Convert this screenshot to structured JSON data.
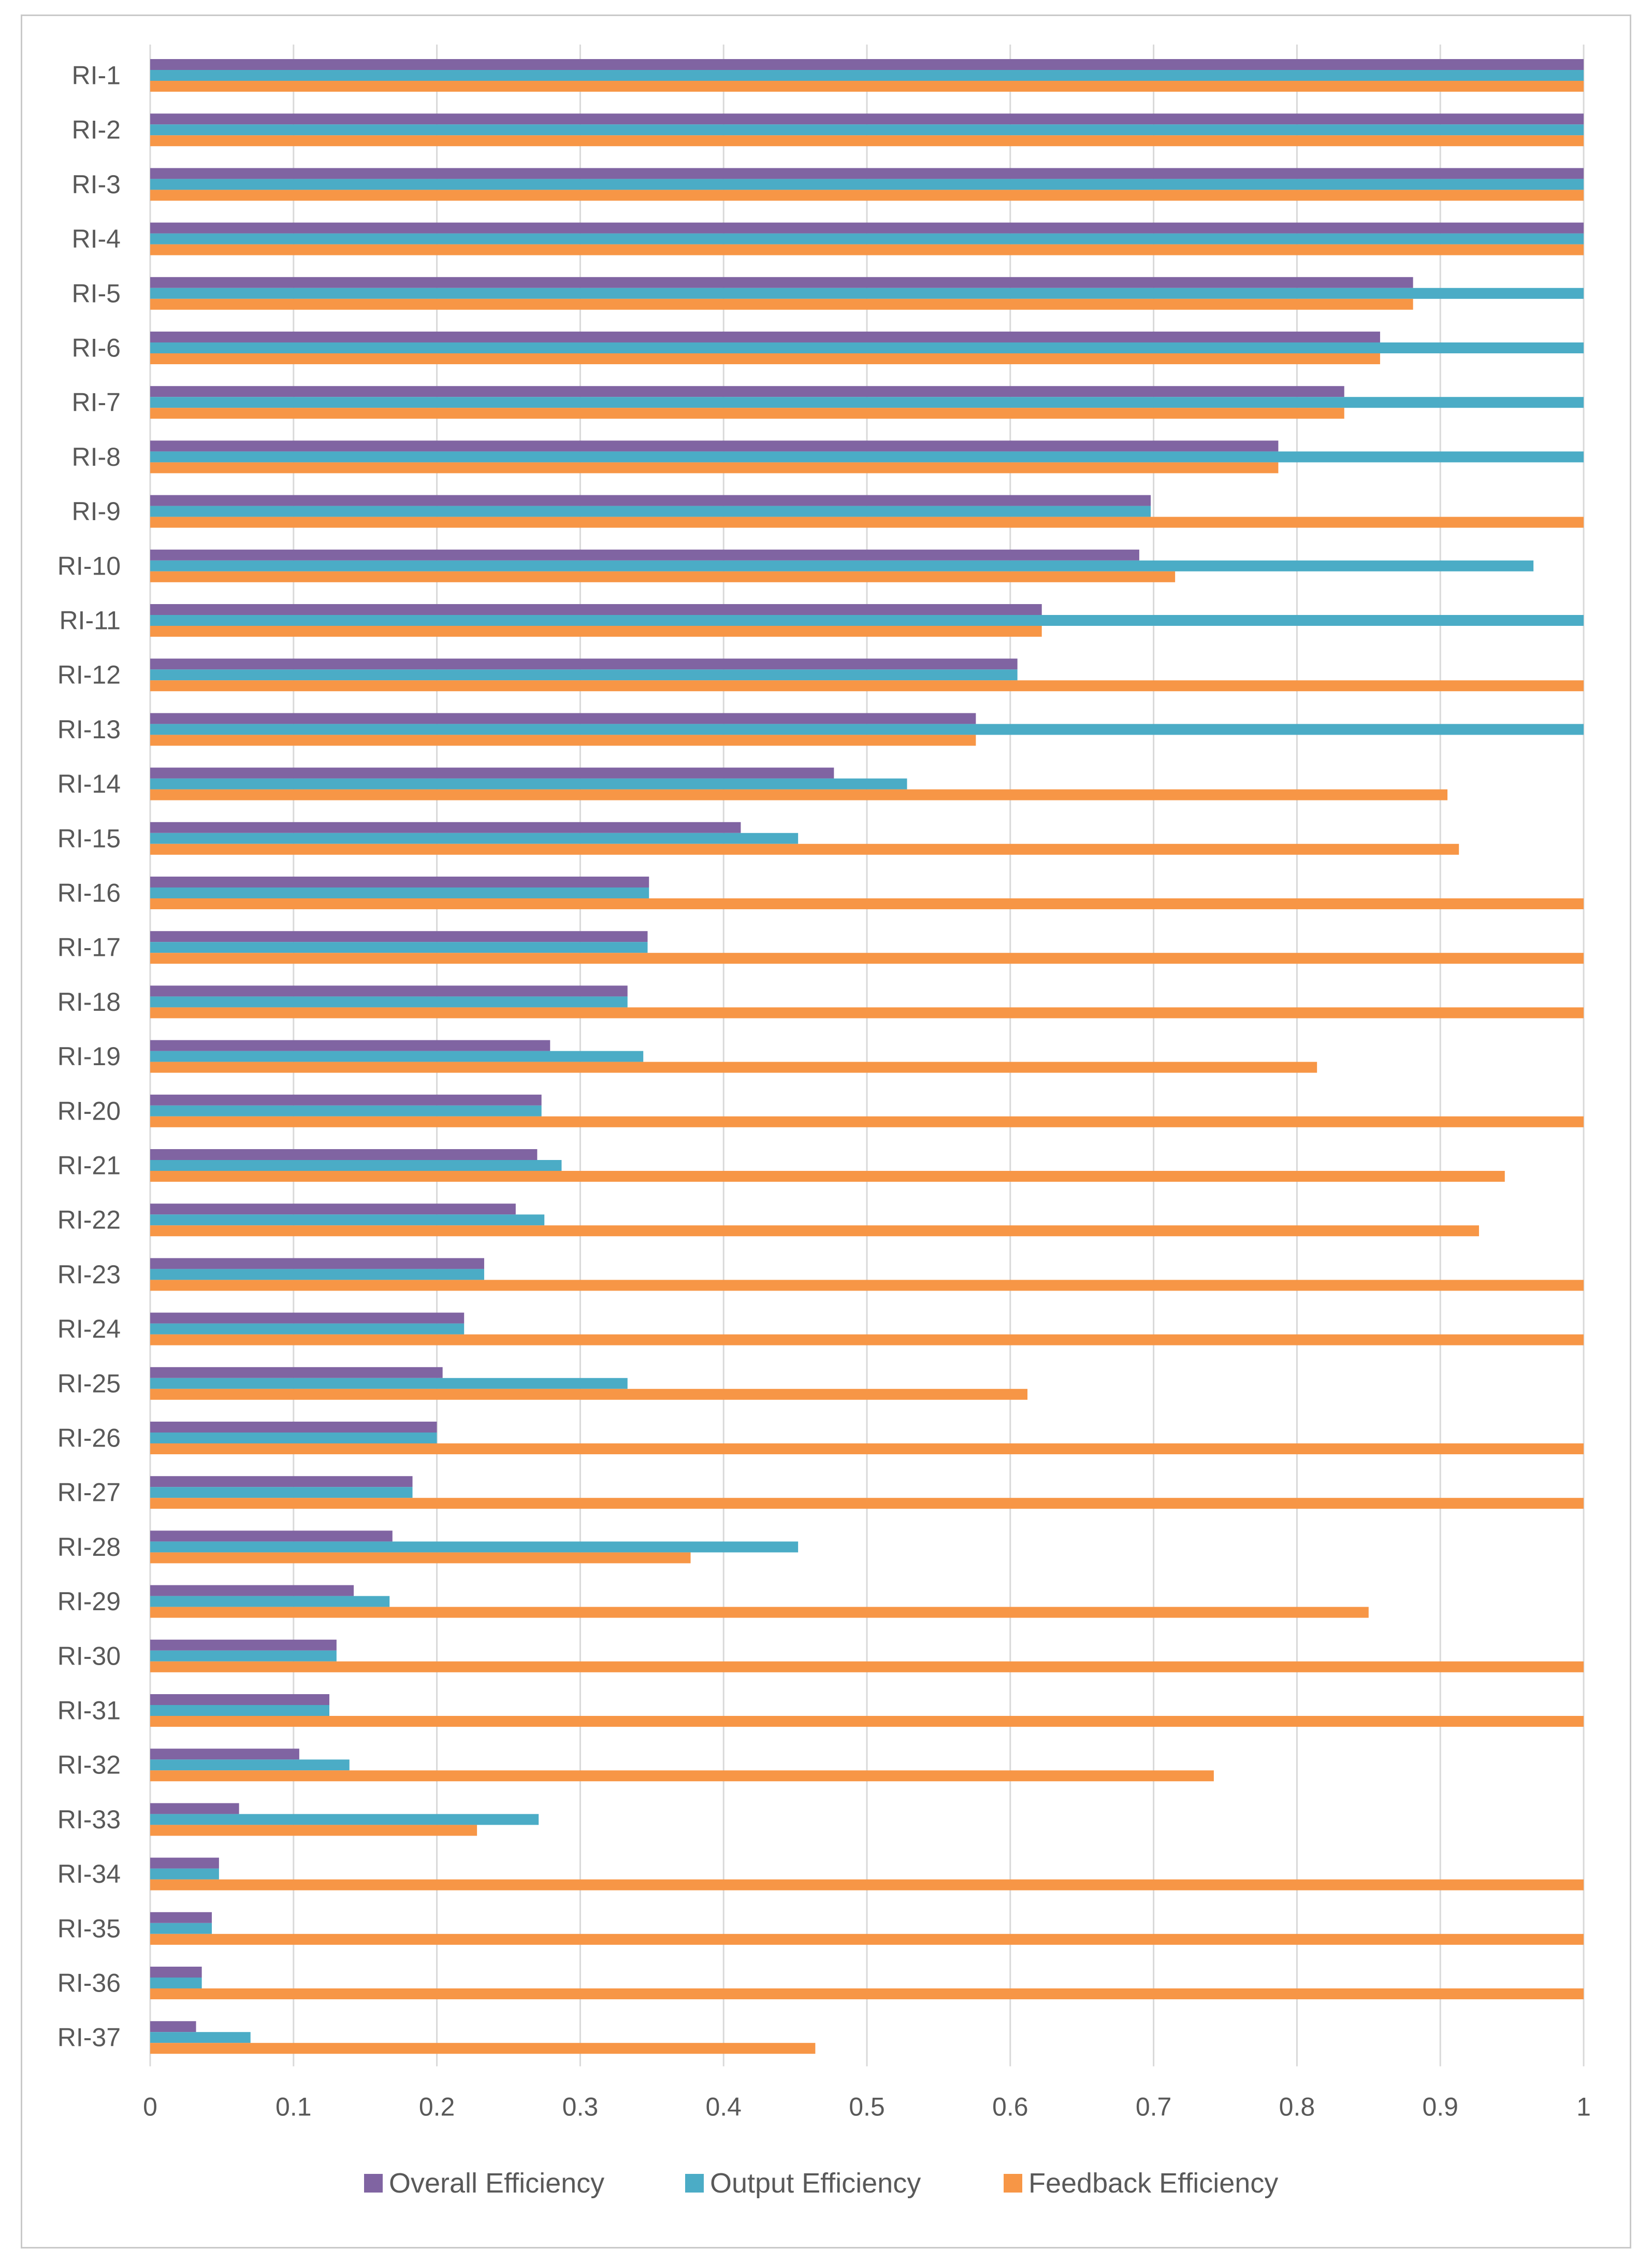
{
  "chart_data": {
    "type": "bar",
    "orientation": "horizontal",
    "title": "",
    "xlabel": "",
    "ylabel": "",
    "xlim": [
      0,
      1
    ],
    "x_ticks": [
      "0",
      "0.1",
      "0.2",
      "0.3",
      "0.4",
      "0.5",
      "0.6",
      "0.7",
      "0.8",
      "0.9",
      "1"
    ],
    "grid": "vertical",
    "legend_position": "bottom",
    "categories": [
      "RI-1",
      "RI-2",
      "RI-3",
      "RI-4",
      "RI-5",
      "RI-6",
      "RI-7",
      "RI-8",
      "RI-9",
      "RI-10",
      "RI-11",
      "RI-12",
      "RI-13",
      "RI-14",
      "RI-15",
      "RI-16",
      "RI-17",
      "RI-18",
      "RI-19",
      "RI-20",
      "RI-21",
      "RI-22",
      "RI-23",
      "RI-24",
      "RI-25",
      "RI-26",
      "RI-27",
      "RI-28",
      "RI-29",
      "RI-30",
      "RI-31",
      "RI-32",
      "RI-33",
      "RI-34",
      "RI-35",
      "RI-36",
      "RI-37"
    ],
    "series": [
      {
        "name": "Overall Efficiency",
        "color": "#8064a2",
        "values": [
          1,
          1,
          1,
          1,
          0.881,
          0.858,
          0.833,
          0.787,
          0.698,
          0.69,
          0.622,
          0.605,
          0.576,
          0.477,
          0.412,
          0.348,
          0.347,
          0.333,
          0.279,
          0.273,
          0.27,
          0.255,
          0.233,
          0.219,
          0.204,
          0.2,
          0.183,
          0.169,
          0.142,
          0.13,
          0.125,
          0.104,
          0.062,
          0.048,
          0.043,
          0.036,
          0.032
        ]
      },
      {
        "name": "Output Efficiency",
        "color": "#4bacc6",
        "values": [
          1,
          1,
          1,
          1,
          1,
          1,
          1,
          1,
          0.698,
          0.965,
          1,
          0.605,
          1,
          0.528,
          0.452,
          0.348,
          0.347,
          0.333,
          0.344,
          0.273,
          0.287,
          0.275,
          0.233,
          0.219,
          0.333,
          0.2,
          0.183,
          0.452,
          0.167,
          0.13,
          0.125,
          0.139,
          0.271,
          0.048,
          0.043,
          0.036,
          0.07
        ]
      },
      {
        "name": "Feedback Efficiency",
        "color": "#f79646",
        "values": [
          1,
          1,
          1,
          1,
          0.881,
          0.858,
          0.833,
          0.787,
          1,
          0.715,
          0.622,
          1,
          0.576,
          0.905,
          0.913,
          1,
          1,
          1,
          0.814,
          1,
          0.945,
          0.927,
          1,
          1,
          0.612,
          1,
          1,
          0.377,
          0.85,
          1,
          1,
          0.742,
          0.228,
          1,
          1,
          1,
          0.464
        ]
      }
    ]
  },
  "legend": {
    "items": [
      "Overall Efficiency",
      "Output Efficiency",
      "Feedback Efficiency"
    ]
  }
}
